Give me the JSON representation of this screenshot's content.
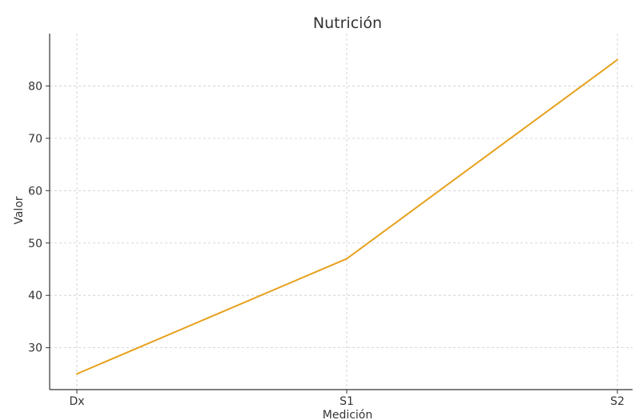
{
  "chart_data": {
    "type": "line",
    "title": "Nutrición",
    "xlabel": "Medición",
    "ylabel": "Valor",
    "categories": [
      "Dx",
      "S1",
      "S2"
    ],
    "series": [
      {
        "values": [
          25,
          47,
          85
        ],
        "color": "#e6a11d"
      }
    ],
    "ylim": [
      22,
      90
    ],
    "yticks": [
      30,
      40,
      50,
      60,
      70,
      80
    ],
    "grid": true,
    "colors": {
      "line": "#e6a11d",
      "grid": "#cccccc",
      "axis": "#333333"
    }
  }
}
